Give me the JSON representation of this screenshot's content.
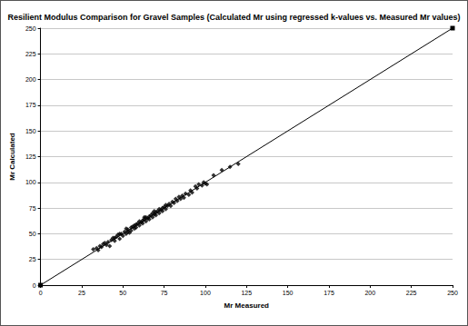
{
  "chart_data": {
    "type": "scatter",
    "title": "Resilient Modulus Comparison for Gravel Samples (Calculated Mr using regressed k-values vs. Measured Mr values)",
    "x_label": "Mr Measured",
    "y_label": "Mr Calculated",
    "xlim": [
      0,
      250
    ],
    "ylim": [
      0,
      250
    ],
    "xticks": [
      0,
      25,
      50,
      75,
      100,
      125,
      150,
      175,
      200,
      225,
      250
    ],
    "yticks": [
      0,
      25,
      50,
      75,
      100,
      125,
      150,
      175,
      200,
      225,
      250
    ],
    "grid": true,
    "series": [
      {
        "type": "scatter",
        "color": "#000000",
        "marker": "diamond",
        "x": [
          32,
          34,
          35,
          36,
          37,
          38,
          39,
          40,
          41,
          42,
          43,
          44,
          45,
          46,
          47,
          48,
          49,
          50,
          51,
          52,
          53,
          54,
          55,
          55,
          56,
          57,
          58,
          58,
          59,
          60,
          60,
          61,
          62,
          62,
          63,
          64,
          64,
          65,
          66,
          66,
          67,
          68,
          68,
          69,
          70,
          70,
          71,
          72,
          72,
          73,
          74,
          74,
          75,
          76,
          76,
          77,
          78,
          79,
          80,
          81,
          82,
          83,
          84,
          85,
          86,
          87,
          88,
          90,
          91,
          92,
          94,
          95,
          96,
          98,
          99,
          100,
          101,
          105,
          110,
          115,
          120,
          52,
          57,
          63,
          69,
          45,
          48,
          53
        ],
        "values": [
          35,
          36,
          34,
          38,
          37,
          40,
          41,
          39,
          42,
          38,
          44,
          46,
          43,
          47,
          49,
          45,
          50,
          48,
          52,
          50,
          54,
          51,
          56,
          53,
          57,
          55,
          59,
          56,
          60,
          58,
          62,
          61,
          63,
          60,
          64,
          62,
          66,
          65,
          67,
          64,
          68,
          66,
          70,
          69,
          71,
          68,
          72,
          70,
          74,
          73,
          75,
          72,
          76,
          74,
          78,
          77,
          79,
          77,
          81,
          80,
          84,
          82,
          86,
          84,
          87,
          85,
          89,
          88,
          92,
          90,
          96,
          94,
          98,
          97,
          100,
          99,
          98,
          107,
          112,
          115,
          118,
          55,
          58,
          66,
          72,
          46,
          50,
          52
        ]
      },
      {
        "type": "line",
        "color": "#000000",
        "marker": "square",
        "x": [
          0,
          250
        ],
        "values": [
          0,
          250
        ]
      }
    ]
  }
}
